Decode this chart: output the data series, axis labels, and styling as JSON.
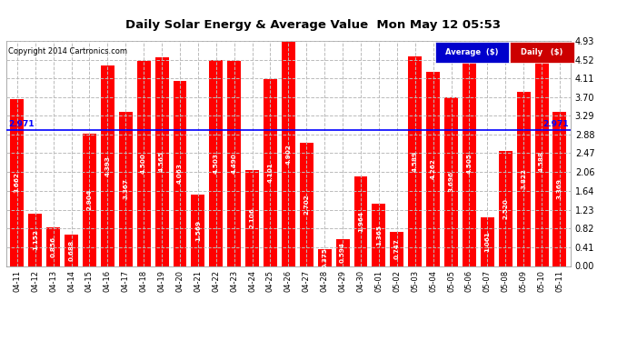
{
  "title": "Daily Solar Energy & Average Value  Mon May 12 05:53",
  "copyright": "Copyright 2014 Cartronics.com",
  "categories": [
    "04-11",
    "04-12",
    "04-13",
    "04-14",
    "04-15",
    "04-16",
    "04-17",
    "04-18",
    "04-19",
    "04-20",
    "04-21",
    "04-22",
    "04-23",
    "04-24",
    "04-25",
    "04-26",
    "04-27",
    "04-28",
    "04-29",
    "04-30",
    "05-01",
    "05-02",
    "05-03",
    "05-04",
    "05-05",
    "05-06",
    "05-07",
    "05-08",
    "05-09",
    "05-10",
    "05-11"
  ],
  "values": [
    3.662,
    1.152,
    0.856,
    0.688,
    2.904,
    4.393,
    3.367,
    4.5,
    4.565,
    4.063,
    1.569,
    4.503,
    4.49,
    2.106,
    4.101,
    4.902,
    2.702,
    0.375,
    0.594,
    1.964,
    1.365,
    0.747,
    4.589,
    4.262,
    3.696,
    4.505,
    1.061,
    2.52,
    3.822,
    4.588,
    3.369
  ],
  "average": 2.971,
  "bar_color": "#ff0000",
  "avg_line_color": "#0000ff",
  "background_color": "#ffffff",
  "plot_bg_color": "#ffffff",
  "grid_color": "#bbbbbb",
  "ylim": [
    0.0,
    4.93
  ],
  "yticks": [
    0.0,
    0.41,
    0.82,
    1.23,
    1.64,
    2.06,
    2.47,
    2.88,
    3.29,
    3.7,
    4.11,
    4.52,
    4.93
  ],
  "legend_avg_bg": "#0000cc",
  "legend_daily_bg": "#cc0000",
  "legend_avg_text": "Average  ($)",
  "legend_daily_text": "Daily   ($)"
}
